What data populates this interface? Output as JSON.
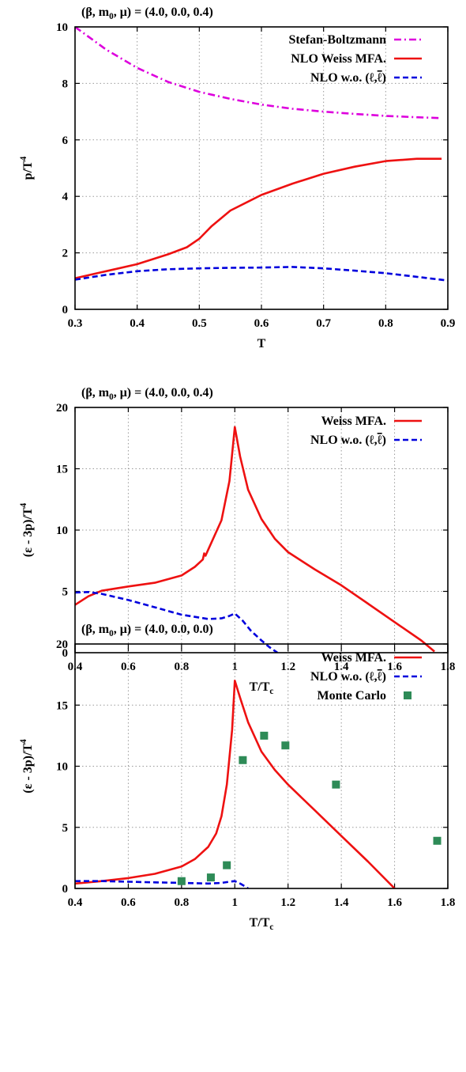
{
  "chart_data": [
    {
      "type": "line",
      "title": "(β, m₀, μ) = (4.0, 0.0, 0.4)",
      "xlabel": "T",
      "ylabel": "p/T⁴",
      "xlim": [
        0.3,
        0.9
      ],
      "ylim": [
        0,
        10
      ],
      "xticks": [
        "0.3",
        "0.4",
        "0.5",
        "0.6",
        "0.7",
        "0.8",
        "0.9"
      ],
      "yticks": [
        "0",
        "2",
        "4",
        "6",
        "8",
        "10"
      ],
      "grid": true,
      "legend_position": "top-right",
      "series": [
        {
          "name": "Stefan-Boltzmann",
          "color": "#dd00dd",
          "style": "dash-dot",
          "x": [
            0.3,
            0.35,
            0.4,
            0.45,
            0.5,
            0.55,
            0.6,
            0.65,
            0.7,
            0.75,
            0.8,
            0.85,
            0.89
          ],
          "y": [
            10.0,
            9.2,
            8.55,
            8.05,
            7.7,
            7.45,
            7.25,
            7.1,
            7.0,
            6.92,
            6.85,
            6.8,
            6.77
          ]
        },
        {
          "name": "NLO Weiss MFA.",
          "color": "#ee1111",
          "style": "solid",
          "x": [
            0.3,
            0.35,
            0.4,
            0.45,
            0.48,
            0.5,
            0.52,
            0.55,
            0.6,
            0.65,
            0.7,
            0.75,
            0.8,
            0.85,
            0.89
          ],
          "y": [
            1.1,
            1.35,
            1.6,
            1.95,
            2.2,
            2.5,
            2.95,
            3.5,
            4.05,
            4.45,
            4.8,
            5.05,
            5.25,
            5.33,
            5.33
          ]
        },
        {
          "name": "NLO w.o. (ℓ,ℓ̄)",
          "color": "#0000dd",
          "style": "dashed",
          "x": [
            0.3,
            0.35,
            0.4,
            0.45,
            0.5,
            0.55,
            0.6,
            0.65,
            0.7,
            0.75,
            0.8,
            0.85,
            0.9
          ],
          "y": [
            1.05,
            1.22,
            1.35,
            1.42,
            1.45,
            1.47,
            1.48,
            1.5,
            1.45,
            1.37,
            1.28,
            1.15,
            1.02
          ]
        }
      ]
    },
    {
      "type": "line",
      "title": "(β, m₀, μ) = (4.0, 0.0, 0.4)",
      "xlabel": "T/Tc",
      "ylabel": "(ε - 3p)/T⁴",
      "xlim": [
        0.4,
        1.8
      ],
      "ylim": [
        0,
        20
      ],
      "xticks": [
        "0.4",
        "0.6",
        "0.8",
        "1",
        "1.2",
        "1.4",
        "1.6",
        "1.8"
      ],
      "yticks": [
        "0",
        "5",
        "10",
        "15",
        "20"
      ],
      "grid": true,
      "legend_position": "top-right",
      "series": [
        {
          "name": "Weiss MFA.",
          "color": "#ee1111",
          "style": "solid",
          "x": [
            0.4,
            0.45,
            0.5,
            0.6,
            0.7,
            0.8,
            0.85,
            0.88,
            0.885,
            0.89,
            0.9,
            0.95,
            0.98,
            1.0,
            1.02,
            1.05,
            1.1,
            1.15,
            1.2,
            1.3,
            1.4,
            1.5,
            1.6,
            1.7,
            1.75
          ],
          "y": [
            3.9,
            4.6,
            5.05,
            5.4,
            5.7,
            6.3,
            7.0,
            7.6,
            8.1,
            7.9,
            8.4,
            10.8,
            14.0,
            18.4,
            16.0,
            13.3,
            10.9,
            9.3,
            8.2,
            6.8,
            5.5,
            4.0,
            2.5,
            1.0,
            0.1
          ]
        },
        {
          "name": "NLO w.o. (ℓ,ℓ̄)",
          "color": "#0000dd",
          "style": "dashed",
          "x": [
            0.4,
            0.45,
            0.5,
            0.6,
            0.7,
            0.8,
            0.9,
            0.95,
            0.98,
            1.0,
            1.03,
            1.06,
            1.1,
            1.13,
            1.16
          ],
          "y": [
            4.9,
            4.95,
            4.8,
            4.3,
            3.7,
            3.1,
            2.75,
            2.8,
            3.0,
            3.2,
            2.6,
            1.8,
            1.0,
            0.45,
            0.0
          ]
        }
      ]
    },
    {
      "type": "line",
      "title": "(β, m₀, μ) = (4.0, 0.0, 0.0)",
      "xlabel": "T/Tc",
      "ylabel": "(ε - 3p)/T⁴",
      "xlim": [
        0.4,
        1.8
      ],
      "ylim": [
        0,
        20
      ],
      "xticks": [
        "0.4",
        "0.6",
        "0.8",
        "1",
        "1.2",
        "1.4",
        "1.6",
        "1.8"
      ],
      "yticks": [
        "0",
        "5",
        "10",
        "15",
        "20"
      ],
      "grid": true,
      "legend_position": "top-right",
      "series": [
        {
          "name": "Weiss MFA.",
          "color": "#ee1111",
          "style": "solid",
          "x": [
            0.4,
            0.5,
            0.6,
            0.7,
            0.8,
            0.85,
            0.9,
            0.93,
            0.95,
            0.97,
            0.99,
            1.0,
            1.02,
            1.05,
            1.1,
            1.15,
            1.2,
            1.3,
            1.4,
            1.5,
            1.6
          ],
          "y": [
            0.4,
            0.6,
            0.85,
            1.2,
            1.8,
            2.4,
            3.4,
            4.5,
            5.9,
            8.5,
            13.0,
            17.0,
            15.6,
            13.6,
            11.2,
            9.7,
            8.5,
            6.4,
            4.3,
            2.2,
            0.0
          ]
        },
        {
          "name": "NLO w.o. (ℓ,ℓ̄)",
          "color": "#0000dd",
          "style": "dashed",
          "x": [
            0.4,
            0.5,
            0.6,
            0.7,
            0.8,
            0.9,
            0.95,
            0.98,
            1.0,
            1.02,
            1.04,
            1.05
          ],
          "y": [
            0.6,
            0.6,
            0.55,
            0.5,
            0.45,
            0.4,
            0.45,
            0.55,
            0.6,
            0.4,
            0.15,
            0.0
          ]
        },
        {
          "name": "Monte Carlo",
          "color": "#2e8b57",
          "style": "markers",
          "x": [
            0.8,
            0.91,
            0.97,
            1.03,
            1.11,
            1.19,
            1.38,
            1.76
          ],
          "y": [
            0.6,
            0.9,
            1.9,
            10.5,
            12.5,
            11.7,
            8.5,
            3.9
          ]
        }
      ]
    }
  ]
}
